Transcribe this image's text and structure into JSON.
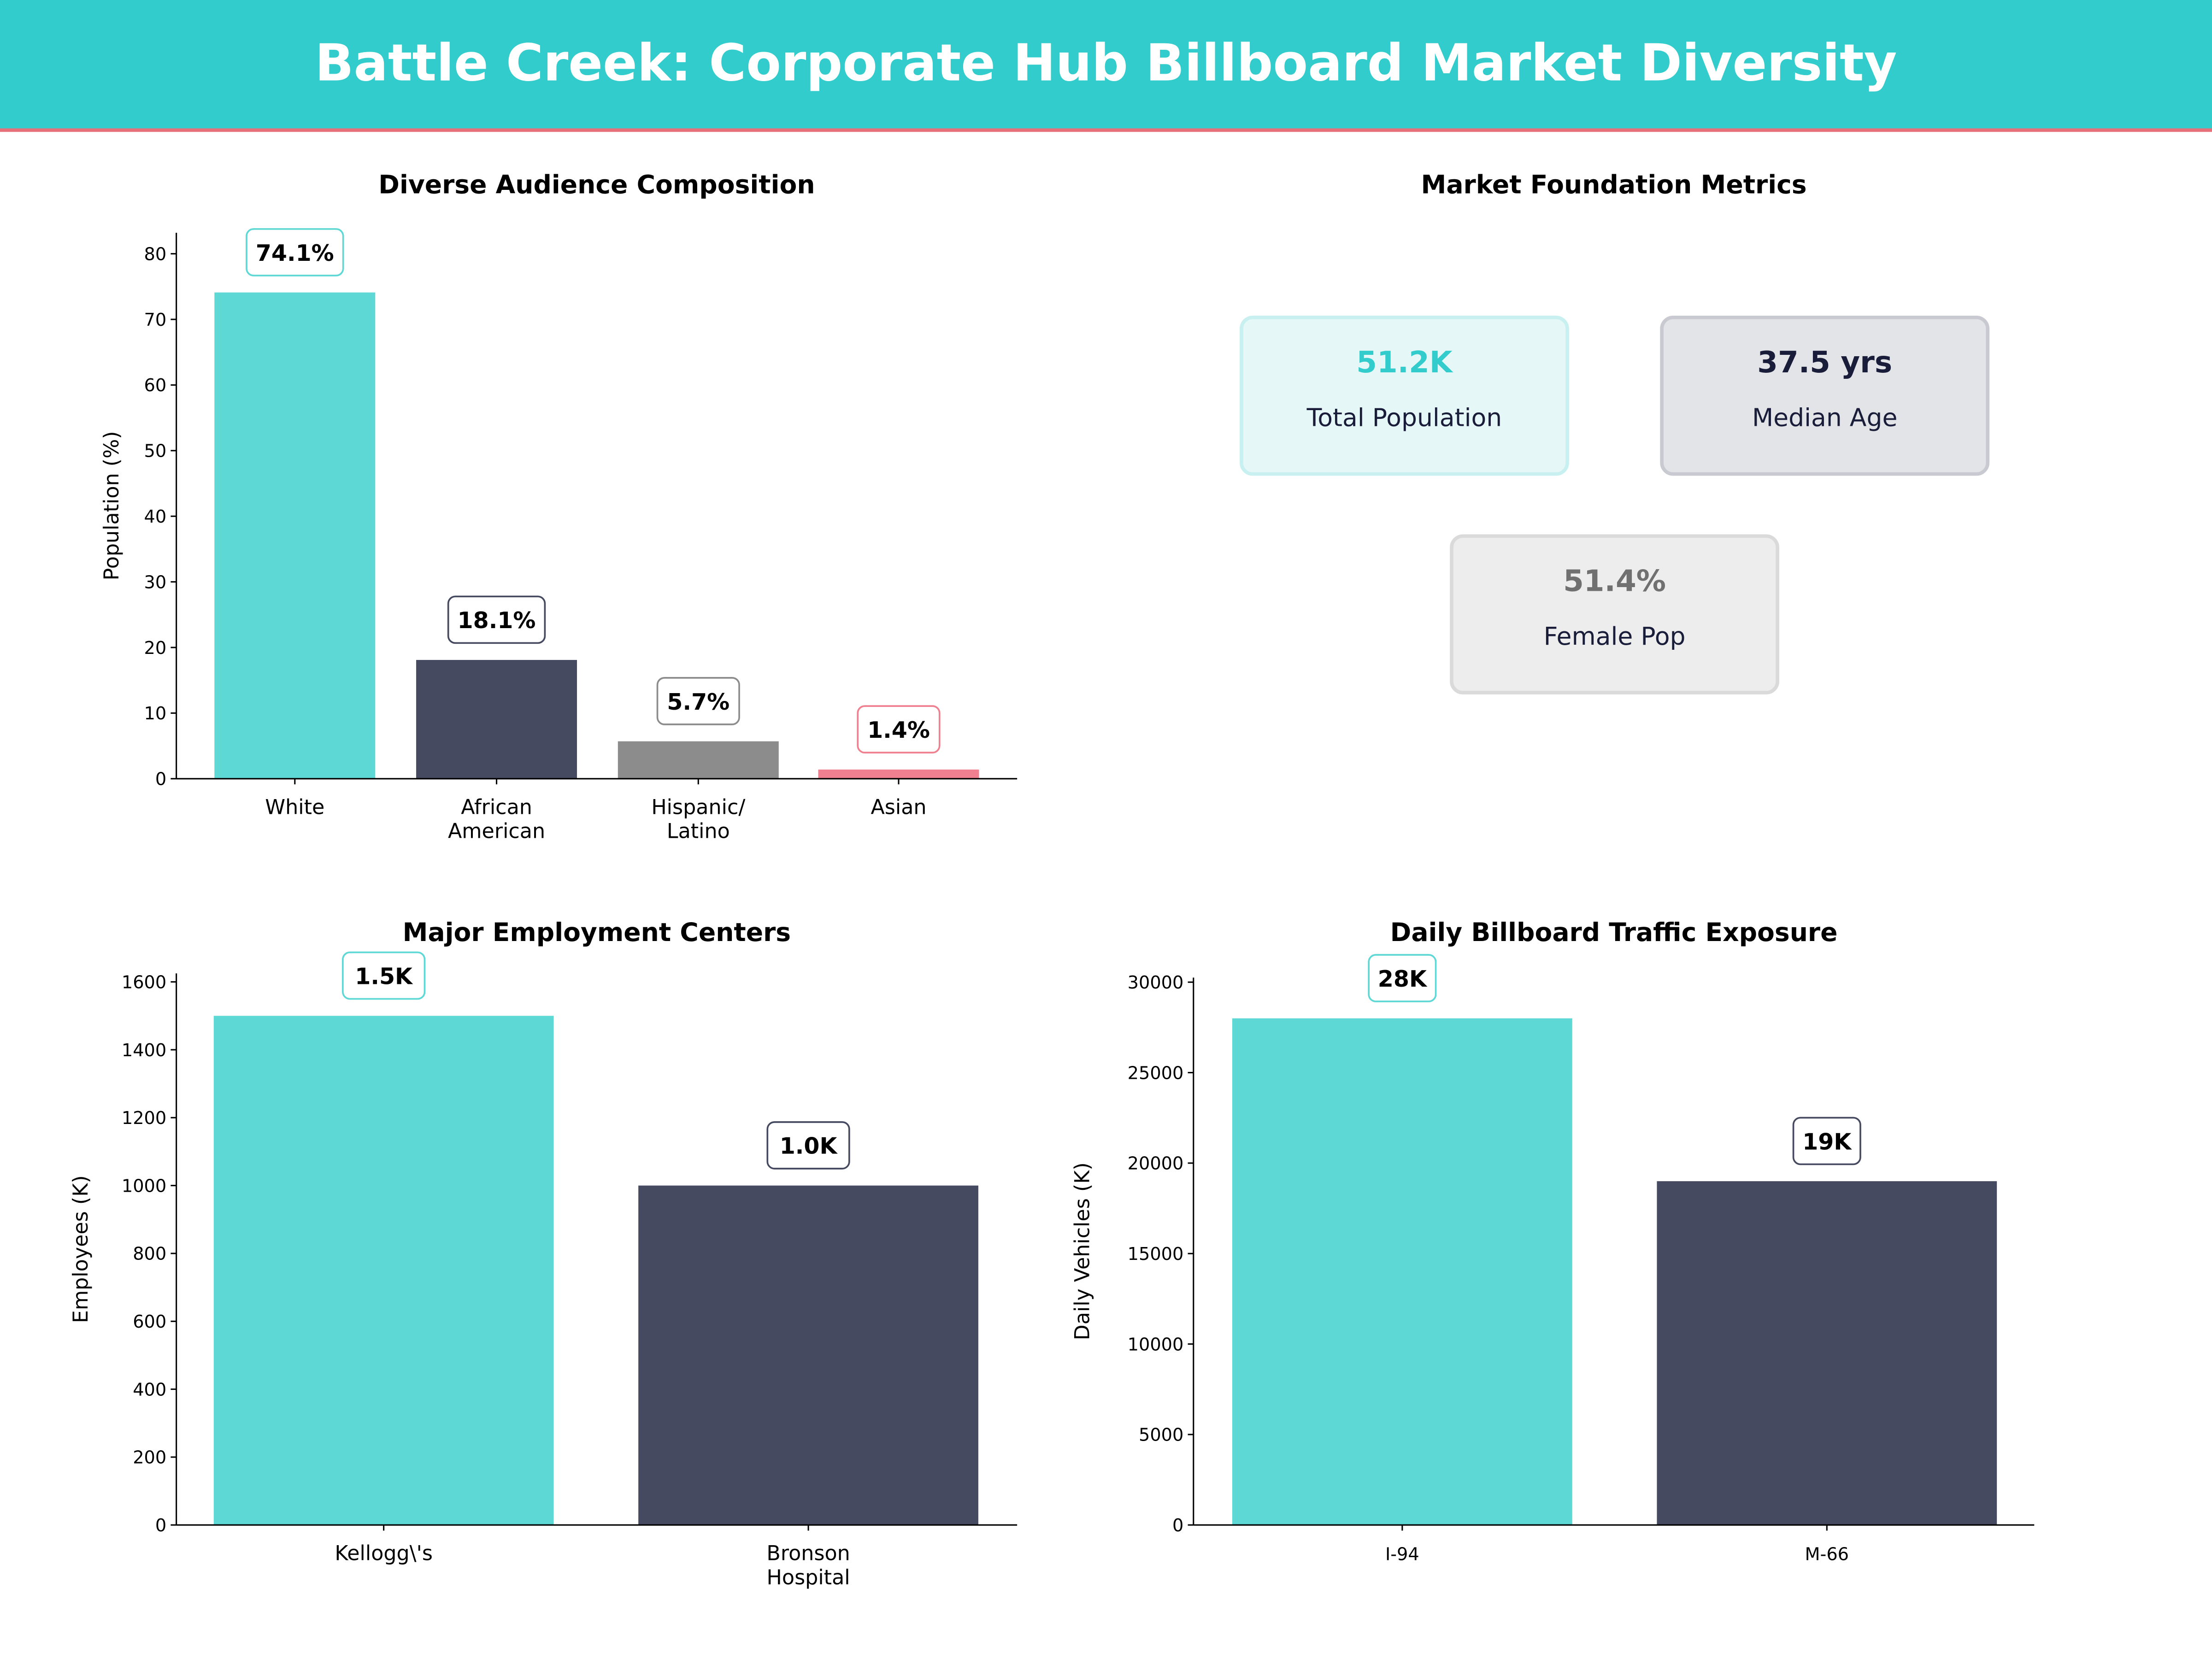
{
  "header": {
    "title": "Battle Creek: Corporate Hub Billboard Market Diversity",
    "bg_color": "#33cccc",
    "rule_color": "#e8707a"
  },
  "metrics": {
    "title": "Market Foundation Metrics",
    "cards": [
      {
        "value": "51.2K",
        "label": "Total Population",
        "value_color": "#33cccc",
        "bg": "#e6f7f7",
        "edge": "#c8f0f0"
      },
      {
        "value": "37.5 yrs",
        "label": "Median Age",
        "value_color": "#1a1d3a",
        "bg": "#e3e4e8",
        "edge": "#c9c9d2"
      },
      {
        "value": "51.4%",
        "label": "Female Pop",
        "value_color": "#707070",
        "bg": "#ededed",
        "edge": "#dadada"
      }
    ]
  },
  "chart_data": [
    {
      "type": "bar",
      "title": "Diverse Audience Composition",
      "ylabel": "Population (%)",
      "xlabel": "",
      "categories": [
        "White",
        "African\nAmerican",
        "Hispanic/\nLatino",
        "Asian"
      ],
      "values": [
        74.1,
        18.1,
        5.7,
        1.4
      ],
      "labels": [
        "74.1%",
        "18.1%",
        "5.7%",
        "1.4%"
      ],
      "colors": [
        "#5dd8d5",
        "#464a60",
        "#8c8c8c",
        "#f08090"
      ],
      "ylim": [
        0,
        83.2
      ],
      "yticks": [
        0,
        10,
        20,
        30,
        40,
        50,
        60,
        70,
        80
      ],
      "grid": false
    },
    {
      "type": "bar",
      "title": "Major Employment Centers",
      "ylabel": "Employees (K)",
      "xlabel": "",
      "categories": [
        "Kellogg\\'s",
        "Bronson\nHospital"
      ],
      "values": [
        1500,
        1000
      ],
      "labels": [
        "1.5K",
        "1.0K"
      ],
      "colors": [
        "#5dd8d5",
        "#464a60"
      ],
      "ylim": [
        0,
        1625
      ],
      "yticks": [
        0,
        200,
        400,
        600,
        800,
        1000,
        1200,
        1400,
        1600
      ],
      "grid": false
    },
    {
      "type": "bar",
      "title": "Daily Billboard Traffic Exposure",
      "ylabel": "Daily Vehicles (K)",
      "xlabel": "",
      "categories": [
        "I-94",
        "M-66"
      ],
      "values": [
        28000,
        19000
      ],
      "labels": [
        "28K",
        "19K"
      ],
      "colors": [
        "#5dd8d5",
        "#464a60"
      ],
      "ylim": [
        0,
        30250
      ],
      "yticks": [
        0,
        5000,
        10000,
        15000,
        20000,
        25000,
        30000
      ],
      "grid": false
    }
  ]
}
